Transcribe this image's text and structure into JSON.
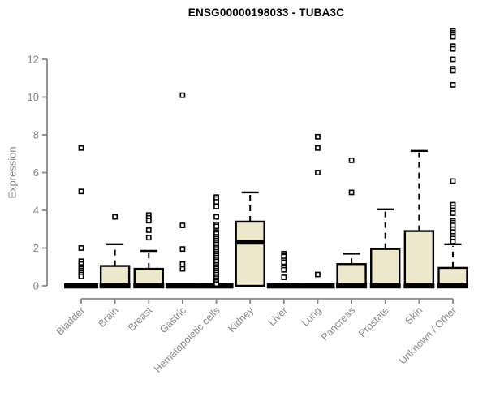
{
  "chart_data": {
    "type": "boxplot",
    "title": "ENSG00000198033 - TUBA3C",
    "ylabel": "Expression",
    "xlabel": "",
    "ylim": [
      0,
      13.6
    ],
    "yticks": [
      0,
      2,
      4,
      6,
      8,
      10,
      12
    ],
    "grid": false,
    "legend": "none",
    "categories": [
      "Bladder",
      "Brain",
      "Breast",
      "Gastric",
      "Hematopoietic cells",
      "Kidney",
      "Liver",
      "Lung",
      "Pancreas",
      "Prostate",
      "Skin",
      "Unknown / Other"
    ],
    "boxes": [
      {
        "category": "Bladder",
        "q1": 0,
        "median": 0,
        "q3": 0,
        "whisker_low": 0,
        "whisker_high": 0,
        "outliers": [
          7.3,
          5.0,
          2.0,
          1.3,
          1.15,
          1.0,
          0.9,
          0.8,
          0.7,
          0.6,
          0.5
        ]
      },
      {
        "category": "Brain",
        "q1": 0,
        "median": 0,
        "q3": 1.05,
        "whisker_low": 0,
        "whisker_high": 2.2,
        "outliers": [
          3.65
        ]
      },
      {
        "category": "Breast",
        "q1": 0,
        "median": 0,
        "q3": 0.9,
        "whisker_low": 0,
        "whisker_high": 1.85,
        "outliers": [
          3.75,
          3.6,
          3.45,
          2.95,
          2.55
        ]
      },
      {
        "category": "Gastric",
        "q1": 0,
        "median": 0,
        "q3": 0,
        "whisker_low": 0,
        "whisker_high": 0,
        "outliers": [
          10.1,
          3.2,
          1.95,
          1.15,
          0.9
        ]
      },
      {
        "category": "Hematopoietic cells",
        "q1": 0,
        "median": 0,
        "q3": 0,
        "whisker_low": 0,
        "whisker_high": 0,
        "outliers": [
          4.7,
          4.6,
          4.45,
          4.2,
          3.65,
          3.25,
          3.15,
          2.85,
          2.75,
          2.6,
          2.5,
          2.4,
          2.3,
          2.2,
          2.1,
          2.0,
          1.9,
          1.8,
          1.7,
          1.6,
          1.5,
          1.4,
          1.3,
          1.2,
          1.1,
          1.0,
          0.9,
          0.8,
          0.7,
          0.6,
          0.5,
          0.4,
          0.3,
          0.2,
          0.1
        ]
      },
      {
        "category": "Kidney",
        "q1": 0,
        "median": 2.3,
        "q3": 3.4,
        "whisker_low": 0,
        "whisker_high": 4.95,
        "outliers": []
      },
      {
        "category": "Liver",
        "q1": 0,
        "median": 0,
        "q3": 0,
        "whisker_low": 0,
        "whisker_high": 0,
        "outliers": [
          1.7,
          1.6,
          1.55,
          1.35,
          1.25,
          1.0,
          0.95,
          0.85,
          0.45
        ]
      },
      {
        "category": "Lung",
        "q1": 0,
        "median": 0,
        "q3": 0,
        "whisker_low": 0,
        "whisker_high": 0,
        "outliers": [
          7.9,
          7.3,
          6.0,
          0.6
        ]
      },
      {
        "category": "Pancreas",
        "q1": 0,
        "median": 0,
        "q3": 1.15,
        "whisker_low": 0,
        "whisker_high": 1.7,
        "outliers": [
          6.65,
          4.95
        ]
      },
      {
        "category": "Prostate",
        "q1": 0,
        "median": 0,
        "q3": 1.95,
        "whisker_low": 0,
        "whisker_high": 4.05,
        "outliers": []
      },
      {
        "category": "Skin",
        "q1": 0,
        "median": 0,
        "q3": 2.9,
        "whisker_low": 0,
        "whisker_high": 7.15,
        "outliers": []
      },
      {
        "category": "Unknown / Other",
        "q1": 0,
        "median": 0,
        "q3": 0.95,
        "whisker_low": 0,
        "whisker_high": 2.2,
        "outliers": [
          13.5,
          13.4,
          13.3,
          13.2,
          12.7,
          12.55,
          12.0,
          11.5,
          11.4,
          10.65,
          5.55,
          4.3,
          4.15,
          4.0,
          3.85,
          3.45,
          3.35,
          3.2,
          3.0,
          2.85,
          2.65,
          2.5,
          2.35
        ]
      }
    ],
    "colors": {
      "box_fill": "#EDE8CC",
      "box_border": "#000000",
      "median": "#000000",
      "outlier_fill": "#FFFFFF",
      "axis": "#878787",
      "tick_label": "#878787",
      "title": "#000000"
    }
  }
}
